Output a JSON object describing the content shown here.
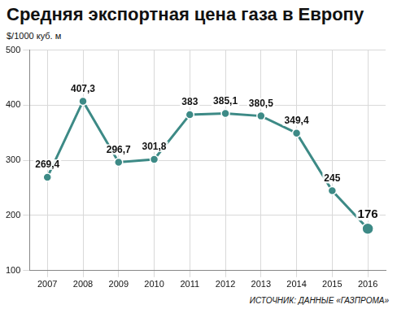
{
  "chart_data": {
    "type": "line",
    "title": "Средняя экспортная цена газа в Европу",
    "ylabel": "$/1000 куб. м",
    "source": "ИСТОЧНИК: ДАННЫЕ «ГАЗПРОМА»",
    "categories": [
      "2007",
      "2008",
      "2009",
      "2010",
      "2011",
      "2012",
      "2013",
      "2014",
      "2015",
      "2016"
    ],
    "values": [
      269.4,
      407.3,
      296.7,
      301.8,
      383,
      385.1,
      380.5,
      349.4,
      245,
      176
    ],
    "value_labels": [
      "269,4",
      "407,3",
      "296,7",
      "301,8",
      "383",
      "385,1",
      "380,5",
      "349,4",
      "245",
      "176"
    ],
    "data_labels": true,
    "color": "#3d8a86",
    "marker": "circle",
    "ylim": [
      100,
      500
    ],
    "yticks": [
      100,
      200,
      300,
      400,
      500
    ],
    "grid": true
  }
}
